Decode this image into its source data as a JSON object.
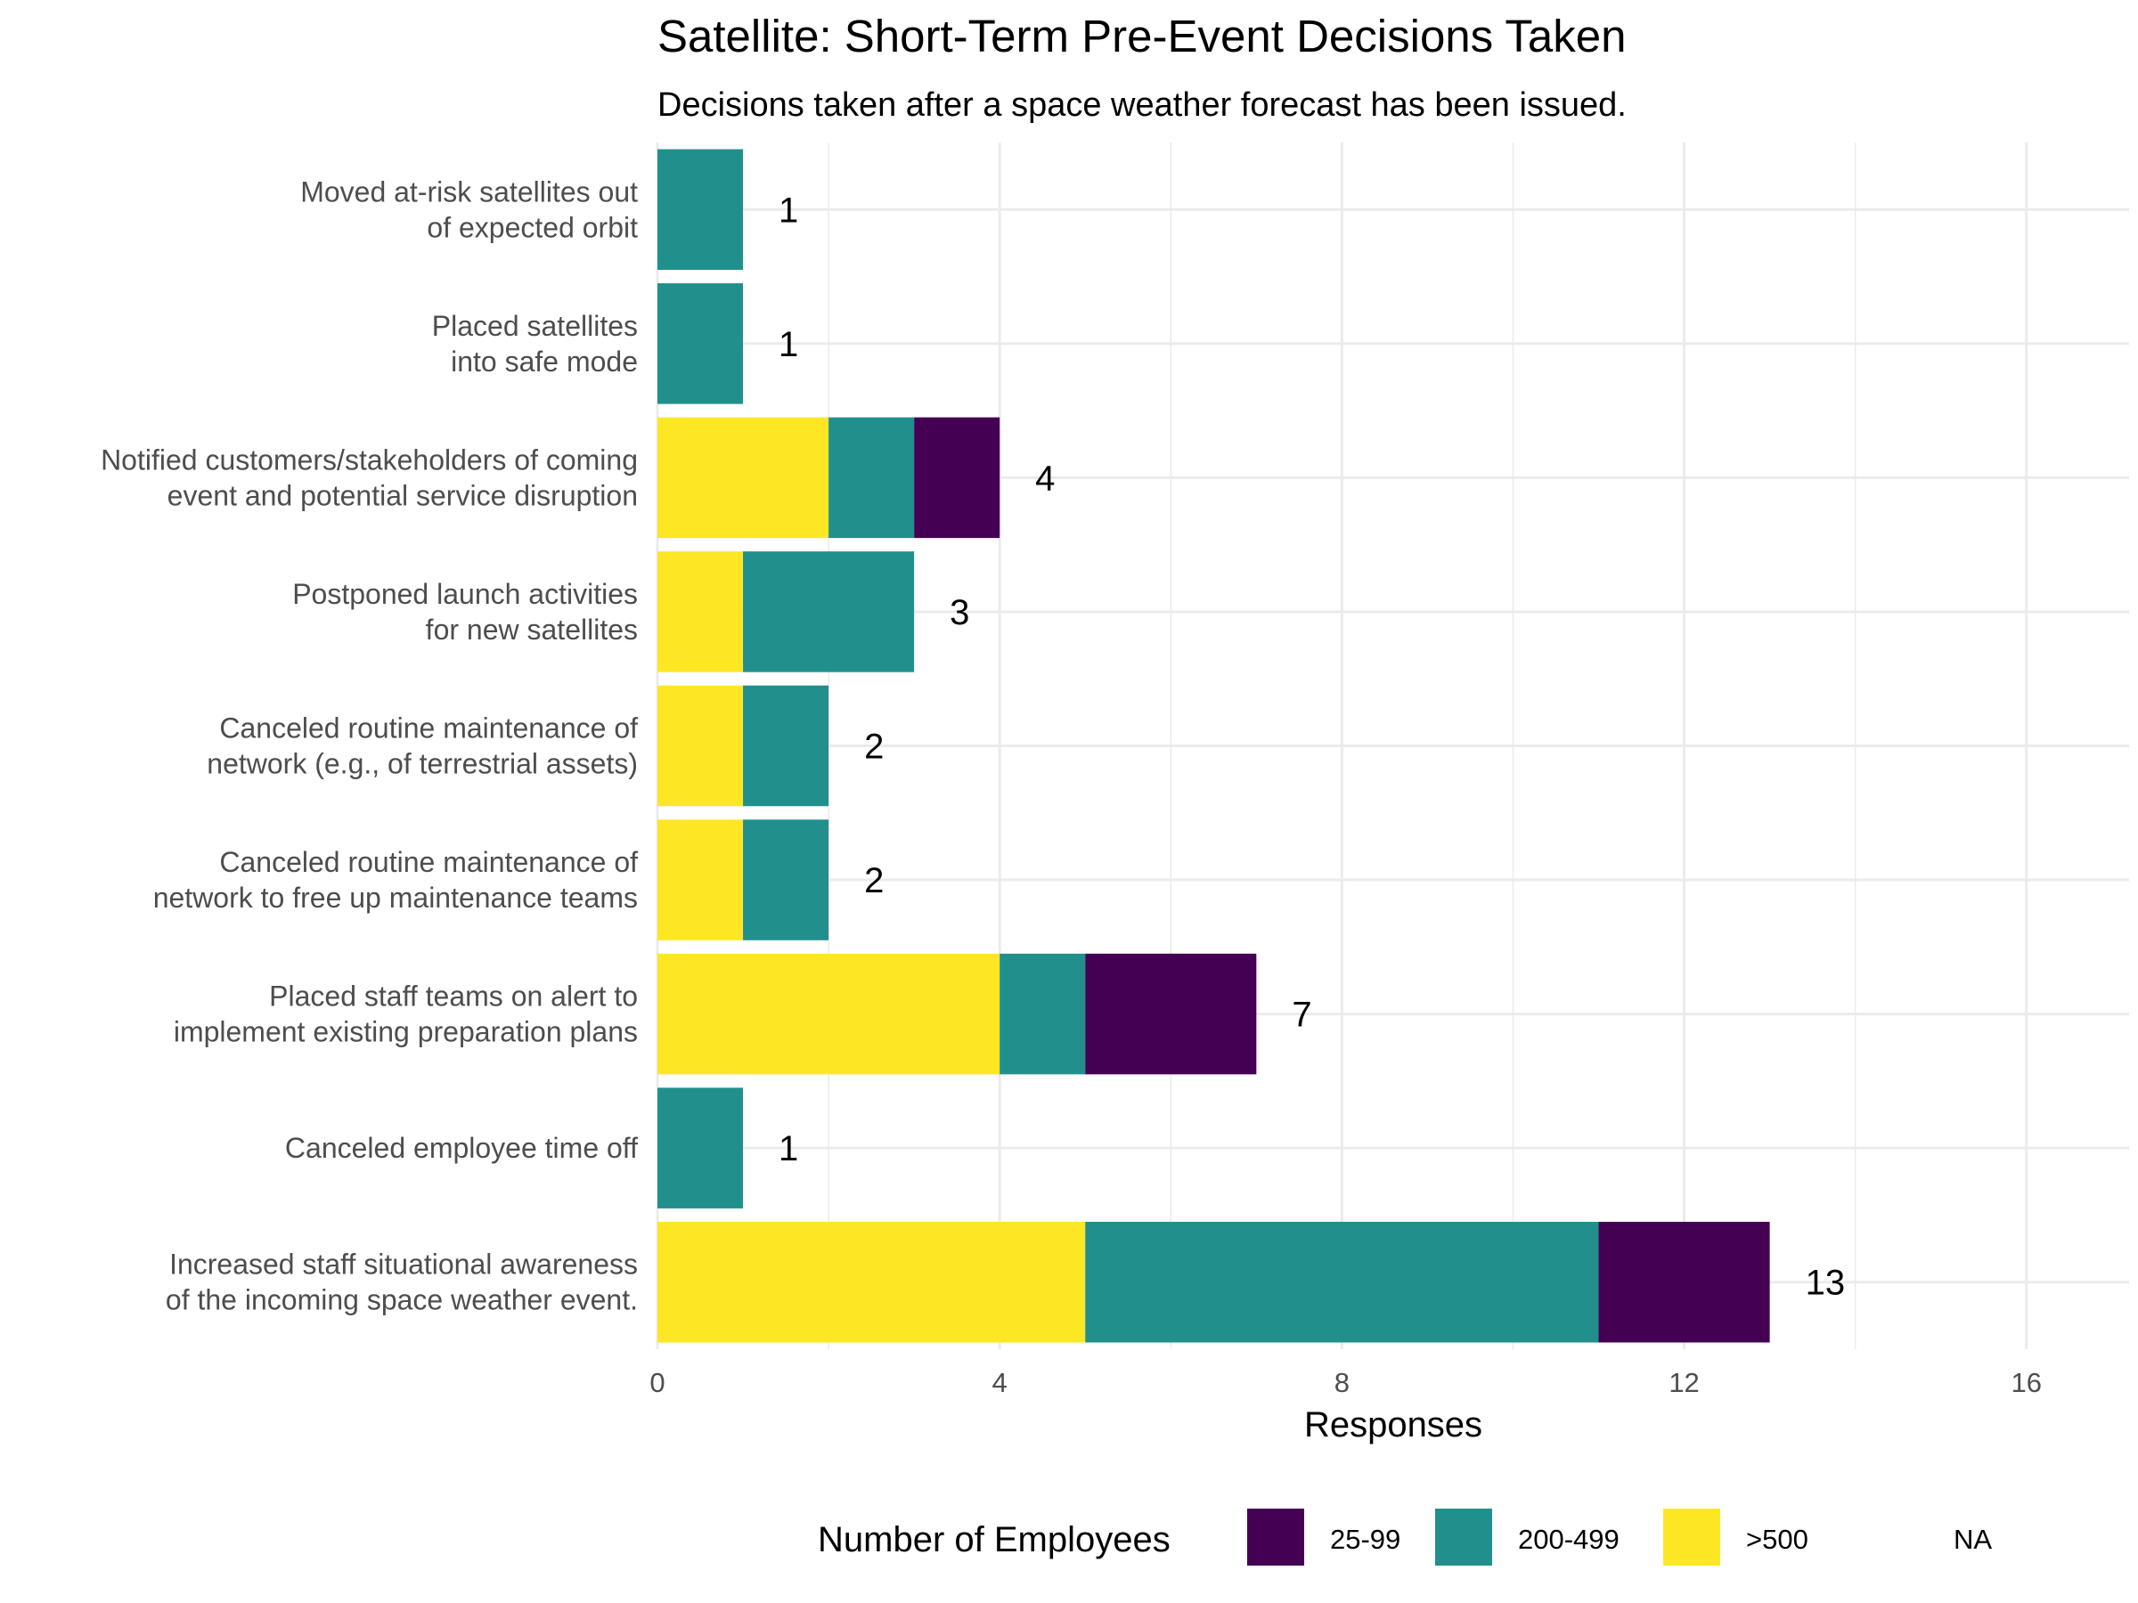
{
  "chart_data": {
    "type": "bar",
    "orientation": "horizontal",
    "stacked": true,
    "title": "Satellite: Short-Term Pre-Event Decisions Taken",
    "subtitle": "Decisions taken after a space weather forecast has been issued.",
    "xlabel": "Responses",
    "ylabel": "",
    "xlim": [
      0,
      17.2
    ],
    "xticks": [
      0,
      4,
      8,
      12,
      16
    ],
    "grid": true,
    "categories": [
      [
        "Moved at-risk satellites out",
        "of expected orbit"
      ],
      [
        "Placed satellites",
        "into safe mode"
      ],
      [
        "Notified customers/stakeholders of coming",
        "event and potential service disruption"
      ],
      [
        "Postponed launch activities",
        "for new satellites"
      ],
      [
        "Canceled routine maintenance of",
        "network (e.g., of terrestrial assets)"
      ],
      [
        "Canceled routine maintenance of",
        "network to free up maintenance teams"
      ],
      [
        "Placed staff teams on alert to",
        "implement existing preparation plans"
      ],
      [
        "Canceled employee time off"
      ],
      [
        "Increased staff situational awareness",
        "of the incoming space weather event."
      ]
    ],
    "stack_order": [
      ">500",
      "200-499",
      "25-99"
    ],
    "series": [
      {
        "name": "25-99",
        "color": "#440154",
        "values": [
          0,
          0,
          1,
          0,
          0,
          0,
          2,
          0,
          2
        ]
      },
      {
        "name": "200-499",
        "color": "#21908C",
        "values": [
          1,
          1,
          1,
          2,
          1,
          1,
          1,
          1,
          6
        ]
      },
      {
        "name": ">500",
        "color": "#FDE725",
        "values": [
          0,
          0,
          2,
          1,
          1,
          1,
          4,
          0,
          5
        ]
      }
    ],
    "totals": [
      1,
      1,
      4,
      3,
      2,
      2,
      7,
      1,
      13
    ],
    "legend": {
      "title": "Number of Employees",
      "position": "bottom",
      "entries": [
        {
          "name": "25-99",
          "color": "#440154"
        },
        {
          "name": "200-499",
          "color": "#21908C"
        },
        {
          "name": ">500",
          "color": "#FDE725"
        },
        {
          "name": "NA",
          "color": ""
        }
      ]
    }
  }
}
